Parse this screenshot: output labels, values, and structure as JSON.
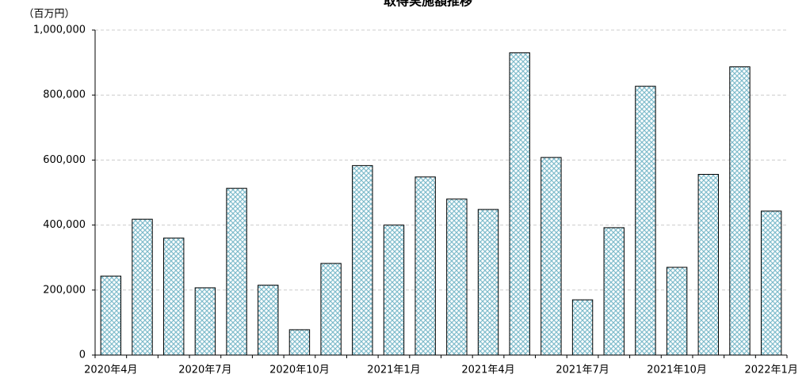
{
  "chart_data": {
    "type": "bar",
    "title": "取得実施額推移",
    "y_axis_label": "（百万円）",
    "categories": [
      "2020年4月",
      null,
      null,
      "2020年7月",
      null,
      null,
      "2020年10月",
      null,
      null,
      "2021年1月",
      null,
      null,
      "2021年4月",
      null,
      null,
      "2021年7月",
      null,
      null,
      "2021年10月",
      null,
      null,
      "2022年1月"
    ],
    "values": [
      243000,
      418000,
      360000,
      207000,
      513000,
      215000,
      78000,
      282000,
      583000,
      400000,
      548000,
      480000,
      448000,
      930000,
      608000,
      170000,
      392000,
      827000,
      270000,
      556000,
      887000,
      443000
    ],
    "color": "#a9d6e0",
    "ylim": [
      0,
      1000000
    ],
    "yticks": [
      0,
      {
        "value": 200000,
        "label": "200,000"
      },
      {
        "value": 400000,
        "label": "400,000"
      },
      {
        "value": 600000,
        "label": "600,000"
      },
      {
        "value": 800000,
        "label": "800,000"
      },
      {
        "value": 1000000,
        "label": "1,000,000"
      }
    ],
    "grid": true
  }
}
